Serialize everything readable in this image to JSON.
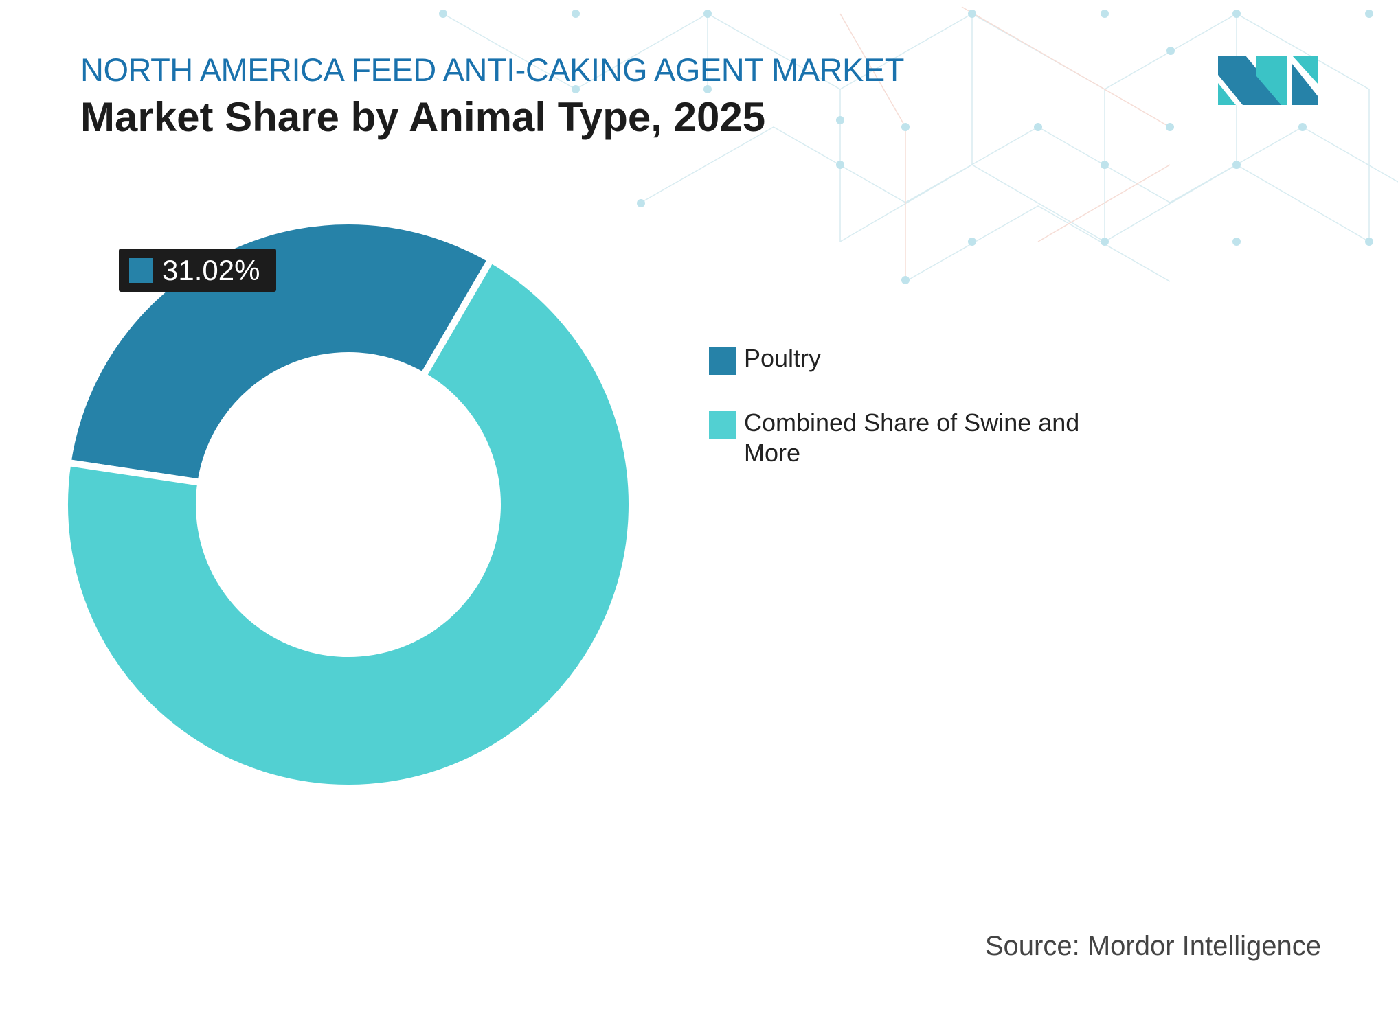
{
  "header": {
    "title": "NORTH AMERICA FEED ANTI-CAKING AGENT MARKET",
    "subtitle": "Market Share by Animal Type, 2025"
  },
  "colors": {
    "title": "#1a72ad",
    "poultry": "#2682a8",
    "other": "#52d0d2",
    "label_bg": "#1c1c1c"
  },
  "chart_data": {
    "type": "pie",
    "donut": true,
    "title": "Market Share by Animal Type, 2025",
    "categories": [
      "Poultry",
      "Combined Share of Swine and More"
    ],
    "values": [
      31.02,
      68.98
    ],
    "unit": "%",
    "data_labels": [
      "31.02%"
    ],
    "legend_position": "right"
  },
  "legend": {
    "items": [
      {
        "label": "Poultry",
        "color": "#2682a8"
      },
      {
        "label": "Combined Share of Swine and More",
        "color": "#52d0d2"
      }
    ]
  },
  "label": {
    "text": "31.02%"
  },
  "source": "Source: Mordor Intelligence",
  "logo": {
    "icon": "mordor-intelligence-logo"
  }
}
